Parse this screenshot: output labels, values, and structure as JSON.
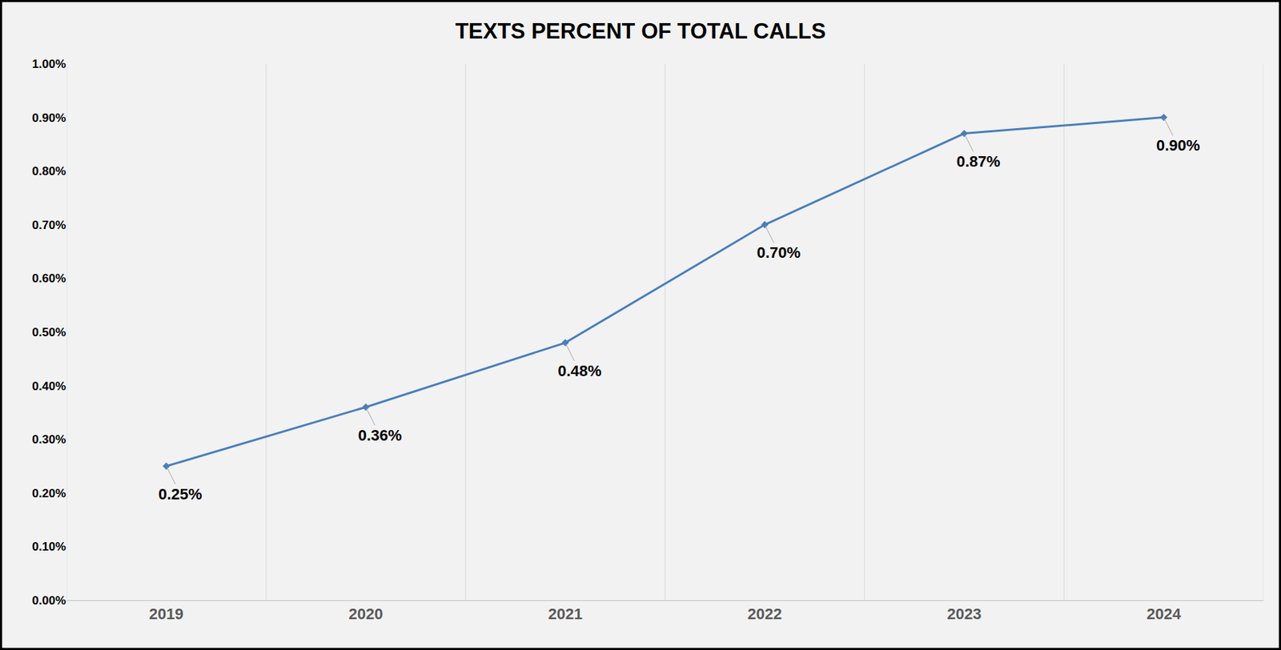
{
  "chart_data": {
    "type": "line",
    "title": "TEXTS PERCENT OF TOTAL CALLS",
    "categories": [
      "2019",
      "2020",
      "2021",
      "2022",
      "2023",
      "2024"
    ],
    "values": [
      0.25,
      0.36,
      0.48,
      0.7,
      0.87,
      0.9
    ],
    "value_labels": [
      "0.25%",
      "0.36%",
      "0.48%",
      "0.70%",
      "0.87%",
      "0.90%"
    ],
    "color": "#4a7ebb",
    "marker": "diamond",
    "line_style": "solid",
    "data_labels": true,
    "grid": true,
    "ylim": [
      0,
      1
    ],
    "yticks": [
      {
        "value": 0,
        "label": "0.00%"
      },
      {
        "value": 0.1,
        "label": "0.10%"
      },
      {
        "value": 0.2,
        "label": "0.20%"
      },
      {
        "value": 0.3,
        "label": "0.30%"
      },
      {
        "value": 0.4,
        "label": "0.40%"
      },
      {
        "value": 0.5,
        "label": "0.50%"
      },
      {
        "value": 0.6,
        "label": "0.60%"
      },
      {
        "value": 0.7,
        "label": "0.70%"
      },
      {
        "value": 0.8,
        "label": "0.80%"
      },
      {
        "value": 0.9,
        "label": "0.90%"
      },
      {
        "value": 1,
        "label": "1.00%"
      }
    ]
  }
}
